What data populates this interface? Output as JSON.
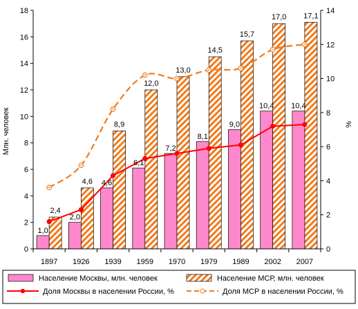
{
  "chart_data": {
    "type": "bar",
    "categories": [
      "1897",
      "1926",
      "1939",
      "1959",
      "1970",
      "1979",
      "1989",
      "2002",
      "2007"
    ],
    "series": [
      {
        "name": "Население Москвы, млн. человек",
        "kind": "bar",
        "axis": "left",
        "color": "#ff88cc",
        "values": [
          1.0,
          2.0,
          4.6,
          6.1,
          7.2,
          8.1,
          9.0,
          10.4,
          10.4
        ],
        "labels": [
          "1,0",
          "2,0",
          "4,6",
          "6,1",
          "7,2",
          "8,1",
          "9,0",
          "10,4",
          "10,4"
        ]
      },
      {
        "name": "Население МСР, млн. человек",
        "kind": "bar-hatched",
        "axis": "left",
        "color": "#f07a1a",
        "values": [
          2.4,
          4.6,
          8.9,
          12.0,
          13.0,
          14.5,
          15.7,
          17.0,
          17.1
        ],
        "labels": [
          "2,4",
          "4,6",
          "8,9",
          "12,0",
          "13,0",
          "14,5",
          "15,7",
          "17,0",
          "17,1"
        ]
      },
      {
        "name": "Доля Москвы в населении России, %",
        "kind": "line",
        "axis": "right",
        "color": "#ff0000",
        "values": [
          1.6,
          2.3,
          4.3,
          5.3,
          5.6,
          5.9,
          6.1,
          7.2,
          7.3
        ]
      },
      {
        "name": "Доля МСР в населении России, %",
        "kind": "dashed-smooth-line",
        "axis": "right",
        "color": "#f07a1a",
        "values": [
          3.6,
          4.9,
          8.2,
          10.2,
          10.0,
          10.5,
          10.6,
          11.7,
          12.0
        ]
      }
    ],
    "ylabel": "Млн. человек",
    "y2label": "%",
    "ylim": [
      0,
      18
    ],
    "y2lim": [
      0,
      14
    ],
    "yticks": [
      "0",
      "2",
      "4",
      "6",
      "8",
      "10",
      "12",
      "14",
      "16",
      "18"
    ],
    "y2ticks": [
      "0",
      "2",
      "4",
      "6",
      "8",
      "10",
      "12",
      "14"
    ],
    "grid": false,
    "legend_position": "bottom"
  }
}
